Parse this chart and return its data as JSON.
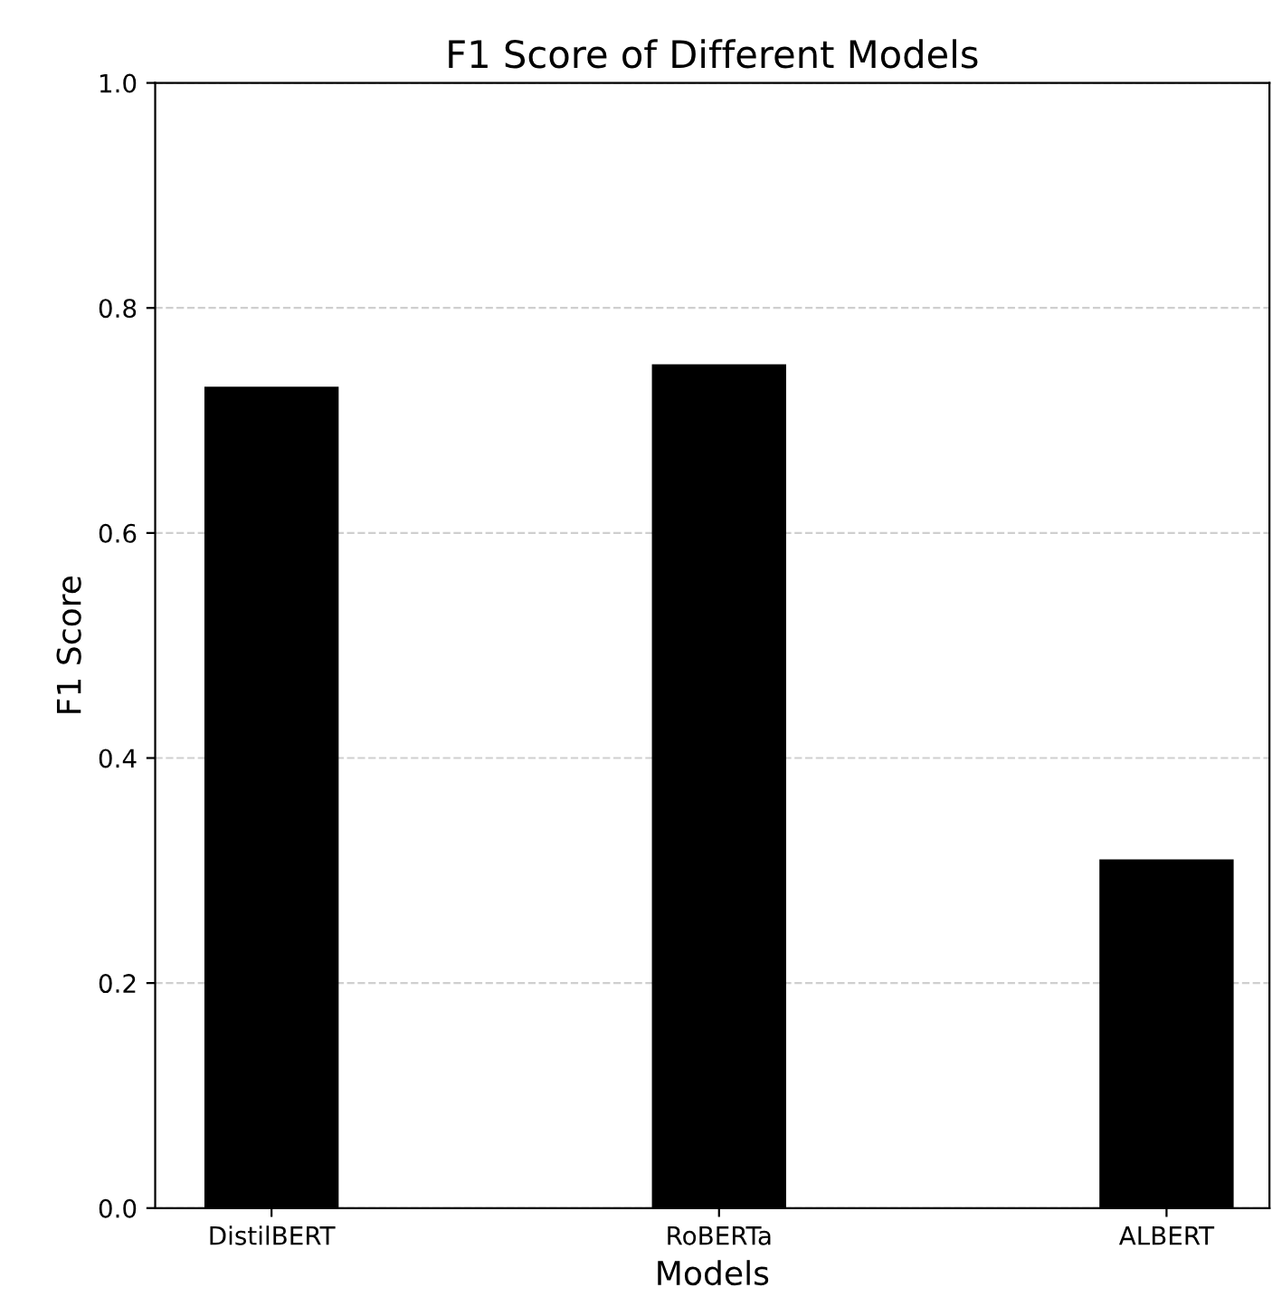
{
  "chart_data": {
    "type": "bar",
    "title": "F1 Score of Different Models",
    "xlabel": "Models",
    "ylabel": "F1 Score",
    "categories": [
      "DistilBERT",
      "RoBERTa",
      "ALBERT"
    ],
    "values": [
      0.73,
      0.75,
      0.31
    ],
    "color": "#000000",
    "ylim": [
      0,
      1.0
    ],
    "yticks": [
      {
        "value": 0,
        "label": "0.0"
      },
      {
        "value": 0.2,
        "label": "0.2"
      },
      {
        "value": 0.4,
        "label": "0.4"
      },
      {
        "value": 0.6,
        "label": "0.6"
      },
      {
        "value": 0.8,
        "label": "0.8"
      },
      {
        "value": 1.0,
        "label": "1.0"
      }
    ],
    "grid": "y"
  }
}
